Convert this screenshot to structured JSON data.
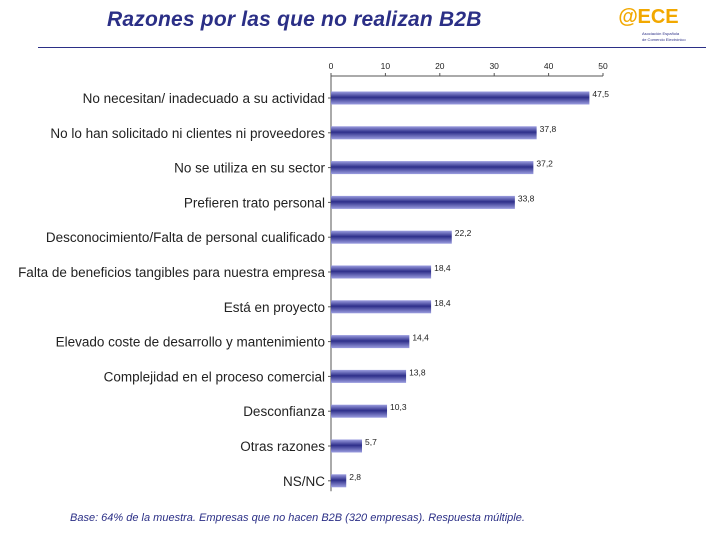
{
  "header": {
    "title": "Razones por las que no realizan B2B"
  },
  "logo": {
    "mark": "ECE",
    "line1": "Asociación Española",
    "line2": "de Comercio Electrónico"
  },
  "colors": {
    "title": "#2b2f86",
    "bar_dark": "#2e2f8a",
    "bar_light": "#9c9ee0",
    "logo": "#f2a800"
  },
  "chart_data": {
    "type": "bar",
    "orientation": "horizontal",
    "xlim": [
      0,
      50
    ],
    "ticks": [
      0,
      10,
      20,
      30,
      40,
      50
    ],
    "tick_position": "top",
    "grid": false,
    "categories": [
      "No necesitan/ inadecuado a su actividad",
      "No lo han solicitado ni clientes ni proveedores",
      "No se utiliza en su sector",
      "Prefieren trato personal",
      "Desconocimiento/Falta de personal cualificado",
      "Falta de beneficios tangibles para nuestra empresa",
      "Está en proyecto",
      "Elevado coste de desarrollo y mantenimiento",
      "Complejidad en el proceso comercial",
      "Desconfianza",
      "Otras razones",
      "NS/NC"
    ],
    "values": [
      47.5,
      37.8,
      37.2,
      33.8,
      22.2,
      18.4,
      18.4,
      14.4,
      13.8,
      10.3,
      5.7,
      2.8
    ],
    "value_labels": [
      "47,5",
      "37,8",
      "37,2",
      "33,8",
      "22,2",
      "18,4",
      "18,4",
      "14,4",
      "13,8",
      "10,3",
      "5,7",
      "2,8"
    ]
  },
  "footnote": "Base: 64% de la muestra. Empresas que no hacen B2B (320 empresas). Respuesta múltiple."
}
